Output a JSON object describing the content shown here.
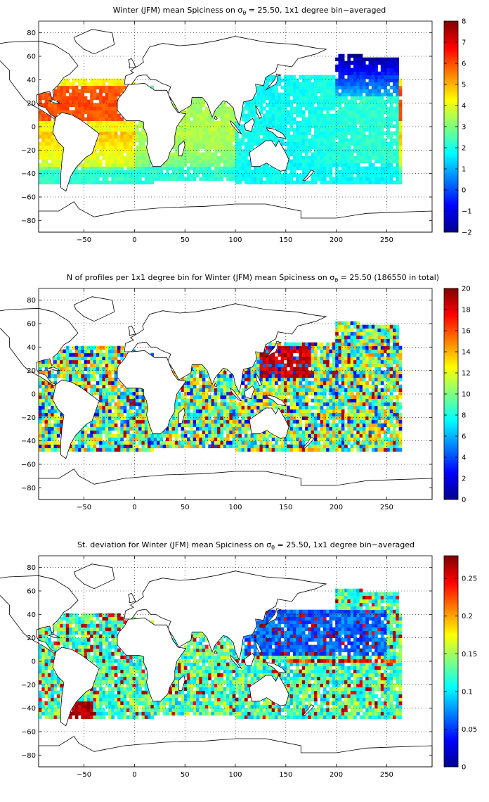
{
  "x_ticks": [
    -50,
    0,
    50,
    100,
    150,
    200,
    250
  ],
  "y_ticks": [
    80,
    60,
    40,
    20,
    0,
    -20,
    -40,
    -60,
    -80
  ],
  "panels": [
    {
      "title_pre": "Winter (JFM) mean Spiciness on ",
      "title_sigma": "σ",
      "title_sub": "θ",
      "title_post": " = 25.50, 1x1 degree bin−averaged",
      "colorbar_ticks": [
        "8",
        "7",
        "6",
        "5",
        "4",
        "3",
        "2",
        "1",
        "0",
        "−1",
        "−2"
      ],
      "colorbar_range": [
        -2,
        8
      ]
    },
    {
      "title_pre": "N of profiles per 1x1 degree bin for Winter (JFM) mean Spiciness on ",
      "title_sigma": "σ",
      "title_sub": "θ",
      "title_post": " = 25.50 (186550 in total)",
      "colorbar_ticks": [
        "20",
        "18",
        "16",
        "14",
        "12",
        "10",
        "8",
        "6",
        "4",
        "2",
        "0"
      ],
      "colorbar_range": [
        0,
        20
      ]
    },
    {
      "title_pre": "St. deviation for Winter (JFM) mean Spiciness on ",
      "title_sigma": "σ",
      "title_sub": "θ",
      "title_post": " = 25.50, 1x1 degree bin−averaged",
      "colorbar_ticks": [
        "0.25",
        "0.2",
        "0.15",
        "0.1",
        "0.05",
        "0"
      ],
      "colorbar_range": [
        0,
        0.28
      ]
    }
  ]
}
